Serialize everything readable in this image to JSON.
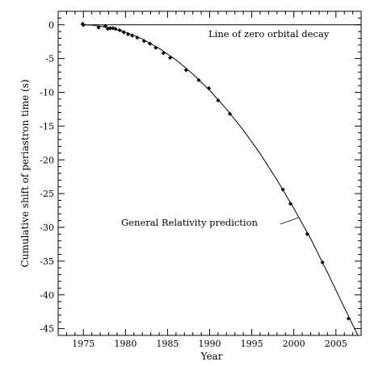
{
  "chart_data": {
    "type": "scatter",
    "xlabel": "Year",
    "ylabel": "Cumulative shift of periastron time (s)",
    "xlim": [
      1972,
      2008
    ],
    "ylim": [
      -46,
      2
    ],
    "xticks": [
      1975,
      1980,
      1985,
      1990,
      1995,
      2000,
      2005
    ],
    "yticks": [
      0,
      -5,
      -10,
      -15,
      -20,
      -25,
      -30,
      -35,
      -40,
      -45
    ],
    "grid": false,
    "legend": "none",
    "series": [
      {
        "kind": "points",
        "x": [
          1974.9,
          1975.0,
          1976.8,
          1977.6,
          1977.9,
          1978.2,
          1978.5,
          1978.8,
          1979.3,
          1979.8,
          1980.3,
          1980.8,
          1981.4,
          1982.2,
          1982.9,
          1983.6,
          1984.5,
          1985.3,
          1987.2,
          1988.7,
          1989.9,
          1991.0,
          1992.4,
          1998.7,
          1999.6,
          2001.6,
          2003.4,
          2006.5
        ],
        "y": [
          0.1,
          0.0,
          -0.4,
          -0.2,
          -0.6,
          -0.5,
          -0.5,
          -0.6,
          -0.8,
          -1.1,
          -1.4,
          -1.6,
          -1.9,
          -2.4,
          -2.8,
          -3.4,
          -4.2,
          -4.9,
          -6.7,
          -8.2,
          -9.4,
          -11.2,
          -13.2,
          -24.4,
          -26.5,
          -31.0,
          -35.2,
          -43.5
        ],
        "yerr": [
          0.35,
          0.3,
          0.25,
          0.25,
          0.2,
          0.2,
          0.2,
          0.2,
          0.15,
          0.15,
          0.15,
          0.15,
          0.15,
          0.15,
          0.15,
          0.15,
          0.15,
          0.15,
          0.15,
          0.15,
          0.15,
          0.15,
          0.15,
          0.15,
          0.15,
          0.15,
          0.15,
          0.15
        ]
      },
      {
        "kind": "curve",
        "x": [
          1975.0,
          1976.0,
          1978.0,
          1980.0,
          1982.0,
          1984.0,
          1986.0,
          1988.0,
          1990.0,
          1992.0,
          1994.0,
          1996.0,
          1998.0,
          2000.0,
          2002.0,
          2004.0,
          2006.0,
          2007.6
        ],
        "y": [
          0.0,
          -0.04,
          -0.4,
          -1.1,
          -2.1,
          -3.5,
          -5.2,
          -7.3,
          -9.7,
          -12.5,
          -15.6,
          -19.1,
          -23.0,
          -27.2,
          -31.7,
          -36.7,
          -41.9,
          -46.0
        ]
      },
      {
        "kind": "reference-line",
        "x": [
          1975.0,
          2008.0
        ],
        "y": [
          0.0,
          0.0
        ]
      }
    ],
    "annotations": [
      {
        "text": "Line of zero orbital decay"
      },
      {
        "text": "General Relativity prediction"
      }
    ]
  }
}
